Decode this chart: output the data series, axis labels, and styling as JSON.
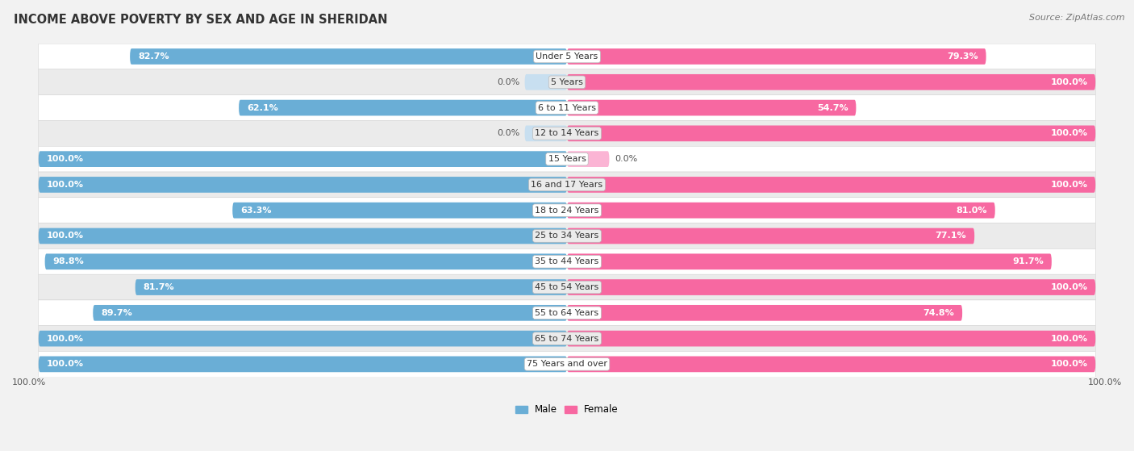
{
  "title": "INCOME ABOVE POVERTY BY SEX AND AGE IN SHERIDAN",
  "source": "Source: ZipAtlas.com",
  "categories": [
    "Under 5 Years",
    "5 Years",
    "6 to 11 Years",
    "12 to 14 Years",
    "15 Years",
    "16 and 17 Years",
    "18 to 24 Years",
    "25 to 34 Years",
    "35 to 44 Years",
    "45 to 54 Years",
    "55 to 64 Years",
    "65 to 74 Years",
    "75 Years and over"
  ],
  "male_values": [
    82.7,
    0.0,
    62.1,
    0.0,
    100.0,
    100.0,
    63.3,
    100.0,
    98.8,
    81.7,
    89.7,
    100.0,
    100.0
  ],
  "female_values": [
    79.3,
    100.0,
    54.7,
    100.0,
    0.0,
    100.0,
    81.0,
    77.1,
    91.7,
    100.0,
    74.8,
    100.0,
    100.0
  ],
  "male_color": "#6aaed6",
  "male_color_light": "#c8dff0",
  "female_color": "#f768a1",
  "female_color_light": "#fbb4d4",
  "male_label": "Male",
  "female_label": "Female",
  "bar_height": 0.62,
  "bg_color": "#f2f2f2",
  "row_color_odd": "#ffffff",
  "row_color_even": "#ebebeb",
  "max_value": 100.0,
  "title_fontsize": 10.5,
  "label_fontsize": 8.0,
  "source_fontsize": 8.0,
  "axis_label_100": "100.0%"
}
